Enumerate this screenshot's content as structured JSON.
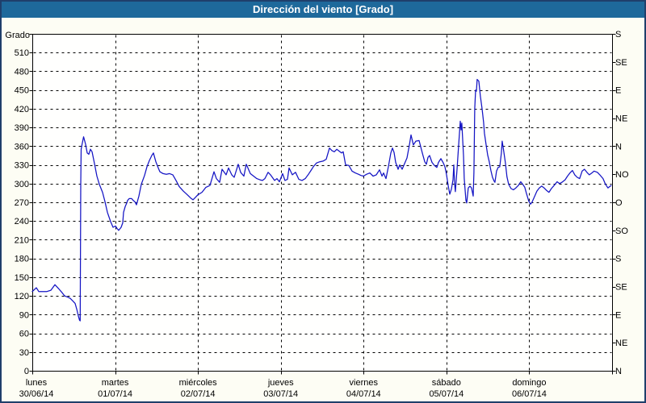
{
  "window": {
    "title": "Dirección del viento [Grado]"
  },
  "theme": {
    "titlebar_bg": "#1E699B",
    "window_border": "#1F3F6B",
    "window_bg": "#FDFDF4",
    "plot_bg": "#FFFFFE",
    "grid_color": "#000000",
    "line_color": "#1414C4",
    "text_color": "#000000"
  },
  "chart_data": {
    "type": "line",
    "title": "Dirección del viento [Grado]",
    "ylabel_left": "Grado",
    "ylim": [
      0,
      540
    ],
    "x_span_days": 7,
    "grid": "dashed",
    "legend": "none",
    "y_ticks_left": [
      0,
      30,
      60,
      90,
      120,
      150,
      180,
      210,
      240,
      270,
      300,
      330,
      360,
      390,
      420,
      450,
      480,
      510
    ],
    "y_ticks_right": [
      {
        "value": 0,
        "label": "N"
      },
      {
        "value": 45,
        "label": "NE"
      },
      {
        "value": 90,
        "label": "E"
      },
      {
        "value": 135,
        "label": "SE"
      },
      {
        "value": 180,
        "label": "S"
      },
      {
        "value": 225,
        "label": "SO"
      },
      {
        "value": 270,
        "label": "O"
      },
      {
        "value": 315,
        "label": "NO"
      },
      {
        "value": 360,
        "label": "N"
      },
      {
        "value": 405,
        "label": "NE"
      },
      {
        "value": 450,
        "label": "E"
      },
      {
        "value": 495,
        "label": "SE"
      },
      {
        "value": 540,
        "label": "S"
      }
    ],
    "x_categories": [
      {
        "day": "lunes",
        "date": "30/06/14"
      },
      {
        "day": "martes",
        "date": "01/07/14"
      },
      {
        "day": "miércoles",
        "date": "02/07/14"
      },
      {
        "day": "jueves",
        "date": "03/07/14"
      },
      {
        "day": "viernes",
        "date": "04/07/14"
      },
      {
        "day": "sábado",
        "date": "05/07/14"
      },
      {
        "day": "domingo",
        "date": "06/07/14"
      }
    ],
    "series": [
      {
        "name": "Dirección del viento (grados)",
        "points": [
          [
            0.0,
            127
          ],
          [
            0.049,
            133
          ],
          [
            0.078,
            127
          ],
          [
            0.176,
            127
          ],
          [
            0.224,
            129
          ],
          [
            0.273,
            138
          ],
          [
            0.322,
            131
          ],
          [
            0.361,
            125
          ],
          [
            0.39,
            120
          ],
          [
            0.429,
            118
          ],
          [
            0.458,
            116
          ],
          [
            0.488,
            112
          ],
          [
            0.517,
            108
          ],
          [
            0.536,
            99
          ],
          [
            0.556,
            88
          ],
          [
            0.57,
            81
          ],
          [
            0.578,
            80
          ],
          [
            0.585,
            300
          ],
          [
            0.59,
            355
          ],
          [
            0.6,
            362
          ],
          [
            0.619,
            375
          ],
          [
            0.643,
            363
          ],
          [
            0.663,
            349
          ],
          [
            0.682,
            347
          ],
          [
            0.702,
            355
          ],
          [
            0.721,
            351
          ],
          [
            0.751,
            332
          ],
          [
            0.78,
            312
          ],
          [
            0.809,
            299
          ],
          [
            0.848,
            286
          ],
          [
            0.877,
            271
          ],
          [
            0.907,
            254
          ],
          [
            0.946,
            239
          ],
          [
            0.975,
            230
          ],
          [
            1.004,
            232
          ],
          [
            1.024,
            228
          ],
          [
            1.043,
            225
          ],
          [
            1.072,
            230
          ],
          [
            1.092,
            237
          ],
          [
            1.102,
            254
          ],
          [
            1.121,
            263
          ],
          [
            1.141,
            269
          ],
          [
            1.15,
            273
          ],
          [
            1.17,
            276
          ],
          [
            1.199,
            276
          ],
          [
            1.219,
            273
          ],
          [
            1.238,
            271
          ],
          [
            1.258,
            266
          ],
          [
            1.287,
            280
          ],
          [
            1.316,
            299
          ],
          [
            1.355,
            313
          ],
          [
            1.384,
            327
          ],
          [
            1.414,
            337
          ],
          [
            1.443,
            345
          ],
          [
            1.462,
            349
          ],
          [
            1.492,
            335
          ],
          [
            1.521,
            325
          ],
          [
            1.54,
            319
          ],
          [
            1.579,
            316
          ],
          [
            1.618,
            315
          ],
          [
            1.657,
            316
          ],
          [
            1.696,
            314
          ],
          [
            1.735,
            305
          ],
          [
            1.774,
            295
          ],
          [
            1.823,
            288
          ],
          [
            1.872,
            282
          ],
          [
            1.911,
            277
          ],
          [
            1.94,
            274
          ],
          [
            1.97,
            278
          ],
          [
            1.999,
            282
          ],
          [
            2.048,
            286
          ],
          [
            2.096,
            294
          ],
          [
            2.145,
            297
          ],
          [
            2.194,
            319
          ],
          [
            2.223,
            308
          ],
          [
            2.262,
            302
          ],
          [
            2.291,
            323
          ],
          [
            2.34,
            314
          ],
          [
            2.369,
            325
          ],
          [
            2.408,
            314
          ],
          [
            2.437,
            310
          ],
          [
            2.486,
            331
          ],
          [
            2.515,
            318
          ],
          [
            2.554,
            312
          ],
          [
            2.584,
            331
          ],
          [
            2.632,
            316
          ],
          [
            2.681,
            311
          ],
          [
            2.71,
            308
          ],
          [
            2.749,
            306
          ],
          [
            2.779,
            305
          ],
          [
            2.808,
            308
          ],
          [
            2.847,
            318
          ],
          [
            2.876,
            314
          ],
          [
            2.925,
            305
          ],
          [
            2.954,
            308
          ],
          [
            2.983,
            303
          ],
          [
            3.022,
            316
          ],
          [
            3.051,
            305
          ],
          [
            3.081,
            307
          ],
          [
            3.1,
            325
          ],
          [
            3.139,
            314
          ],
          [
            3.178,
            318
          ],
          [
            3.217,
            307
          ],
          [
            3.256,
            305
          ],
          [
            3.295,
            308
          ],
          [
            3.334,
            315
          ],
          [
            3.364,
            321
          ],
          [
            3.393,
            327
          ],
          [
            3.432,
            333
          ],
          [
            3.471,
            335
          ],
          [
            3.51,
            336
          ],
          [
            3.549,
            339
          ],
          [
            3.588,
            357
          ],
          [
            3.617,
            353
          ],
          [
            3.646,
            351
          ],
          [
            3.676,
            355
          ],
          [
            3.705,
            352
          ],
          [
            3.734,
            349
          ],
          [
            3.753,
            351
          ],
          [
            3.783,
            330
          ],
          [
            3.822,
            329
          ],
          [
            3.861,
            320
          ],
          [
            3.9,
            317
          ],
          [
            3.938,
            315
          ],
          [
            3.968,
            313
          ],
          [
            3.997,
            312
          ],
          [
            4.036,
            315
          ],
          [
            4.075,
            317
          ],
          [
            4.114,
            312
          ],
          [
            4.153,
            314
          ],
          [
            4.192,
            322
          ],
          [
            4.222,
            312
          ],
          [
            4.241,
            317
          ],
          [
            4.27,
            308
          ],
          [
            4.3,
            328
          ],
          [
            4.329,
            349
          ],
          [
            4.348,
            357
          ],
          [
            4.368,
            350
          ],
          [
            4.387,
            334
          ],
          [
            4.416,
            323
          ],
          [
            4.436,
            330
          ],
          [
            4.465,
            323
          ],
          [
            4.494,
            332
          ],
          [
            4.524,
            341
          ],
          [
            4.553,
            362
          ],
          [
            4.572,
            378
          ],
          [
            4.601,
            362
          ],
          [
            4.631,
            368
          ],
          [
            4.67,
            369
          ],
          [
            4.709,
            349
          ],
          [
            4.738,
            335
          ],
          [
            4.758,
            331
          ],
          [
            4.777,
            342
          ],
          [
            4.797,
            345
          ],
          [
            4.826,
            334
          ],
          [
            4.855,
            329
          ],
          [
            4.884,
            326
          ],
          [
            4.904,
            334
          ],
          [
            4.933,
            340
          ],
          [
            4.962,
            333
          ],
          [
            4.982,
            327
          ],
          [
            5.001,
            314
          ],
          [
            5.021,
            297
          ],
          [
            5.04,
            283
          ],
          [
            5.06,
            291
          ],
          [
            5.079,
            306
          ],
          [
            5.089,
            330
          ],
          [
            5.099,
            300
          ],
          [
            5.108,
            287
          ],
          [
            5.128,
            323
          ],
          [
            5.147,
            360
          ],
          [
            5.167,
            400
          ],
          [
            5.177,
            386
          ],
          [
            5.186,
            397
          ],
          [
            5.206,
            345
          ],
          [
            5.215,
            308
          ],
          [
            5.235,
            273
          ],
          [
            5.245,
            269
          ],
          [
            5.264,
            293
          ],
          [
            5.284,
            296
          ],
          [
            5.303,
            293
          ],
          [
            5.323,
            280
          ],
          [
            5.332,
            318
          ],
          [
            5.342,
            420
          ],
          [
            5.352,
            450
          ],
          [
            5.362,
            448
          ],
          [
            5.371,
            467
          ],
          [
            5.391,
            464
          ],
          [
            5.41,
            440
          ],
          [
            5.43,
            420
          ],
          [
            5.449,
            398
          ],
          [
            5.459,
            381
          ],
          [
            5.478,
            363
          ],
          [
            5.498,
            346
          ],
          [
            5.517,
            335
          ],
          [
            5.537,
            321
          ],
          [
            5.556,
            310
          ],
          [
            5.576,
            304
          ],
          [
            5.585,
            302
          ],
          [
            5.605,
            320
          ],
          [
            5.624,
            326
          ],
          [
            5.644,
            327
          ],
          [
            5.663,
            349
          ],
          [
            5.673,
            368
          ],
          [
            5.692,
            352
          ],
          [
            5.712,
            333
          ],
          [
            5.731,
            311
          ],
          [
            5.751,
            299
          ],
          [
            5.78,
            292
          ],
          [
            5.809,
            290
          ],
          [
            5.838,
            293
          ],
          [
            5.868,
            297
          ],
          [
            5.897,
            303
          ],
          [
            5.926,
            298
          ],
          [
            5.946,
            294
          ],
          [
            5.965,
            285
          ],
          [
            5.994,
            272
          ],
          [
            6.014,
            267
          ],
          [
            6.033,
            270
          ],
          [
            6.063,
            279
          ],
          [
            6.092,
            288
          ],
          [
            6.121,
            293
          ],
          [
            6.15,
            296
          ],
          [
            6.18,
            293
          ],
          [
            6.209,
            289
          ],
          [
            6.238,
            286
          ],
          [
            6.267,
            292
          ],
          [
            6.306,
            298
          ],
          [
            6.336,
            303
          ],
          [
            6.365,
            300
          ],
          [
            6.394,
            302
          ],
          [
            6.433,
            306
          ],
          [
            6.462,
            312
          ],
          [
            6.491,
            317
          ],
          [
            6.521,
            321
          ],
          [
            6.55,
            314
          ],
          [
            6.579,
            310
          ],
          [
            6.608,
            308
          ],
          [
            6.638,
            320
          ],
          [
            6.667,
            323
          ],
          [
            6.696,
            318
          ],
          [
            6.725,
            314
          ],
          [
            6.755,
            317
          ],
          [
            6.784,
            320
          ],
          [
            6.823,
            318
          ],
          [
            6.852,
            314
          ],
          [
            6.891,
            308
          ],
          [
            6.92,
            299
          ],
          [
            6.95,
            293
          ],
          [
            6.969,
            295
          ],
          [
            6.989,
            297
          ]
        ]
      }
    ]
  }
}
